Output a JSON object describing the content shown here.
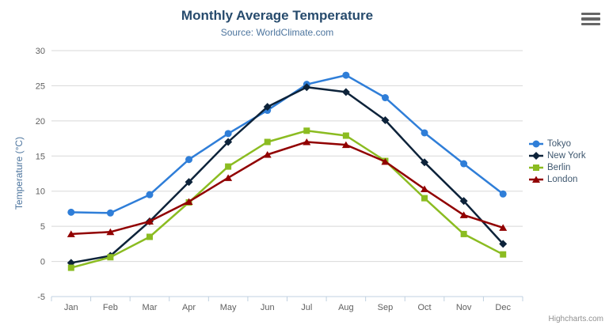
{
  "chart_data": {
    "type": "line",
    "title": "Monthly Average Temperature",
    "subtitle": "Source: WorldClimate.com",
    "xlabel": "",
    "ylabel": "Temperature (°C)",
    "categories": [
      "Jan",
      "Feb",
      "Mar",
      "Apr",
      "May",
      "Jun",
      "Jul",
      "Aug",
      "Sep",
      "Oct",
      "Nov",
      "Dec"
    ],
    "ylim": [
      -5,
      30
    ],
    "ytick_step": 5,
    "grid": true,
    "legend_position": "right",
    "series": [
      {
        "name": "Tokyo",
        "color": "#2f7ed8",
        "marker": "circle",
        "values": [
          7.0,
          6.9,
          9.5,
          14.5,
          18.2,
          21.5,
          25.2,
          26.5,
          23.3,
          18.3,
          13.9,
          9.6
        ]
      },
      {
        "name": "New York",
        "color": "#0d233a",
        "marker": "diamond",
        "values": [
          -0.2,
          0.8,
          5.7,
          11.3,
          17.0,
          22.0,
          24.8,
          24.1,
          20.1,
          14.1,
          8.6,
          2.5
        ]
      },
      {
        "name": "Berlin",
        "color": "#8bbc21",
        "marker": "square",
        "values": [
          -0.9,
          0.6,
          3.5,
          8.4,
          13.5,
          17.0,
          18.6,
          17.9,
          14.3,
          9.0,
          3.9,
          1.0
        ]
      },
      {
        "name": "London",
        "color": "#910000",
        "marker": "triangle",
        "values": [
          3.9,
          4.2,
          5.7,
          8.5,
          11.9,
          15.2,
          17.0,
          16.6,
          14.2,
          10.3,
          6.6,
          4.8
        ]
      }
    ]
  },
  "export_menu": {
    "icon": "hamburger-icon"
  },
  "credits": {
    "label": "Highcharts.com"
  },
  "colors": {
    "title": "#274b6d",
    "subtitle": "#4d759e",
    "axis_title": "#4d759e",
    "tick_label": "#606060",
    "gridline": "#d8d8d8",
    "axis_line": "#c0d0e0",
    "credits": "#909090",
    "menu_icon": "#666666",
    "legend_text": "#3e576f"
  }
}
